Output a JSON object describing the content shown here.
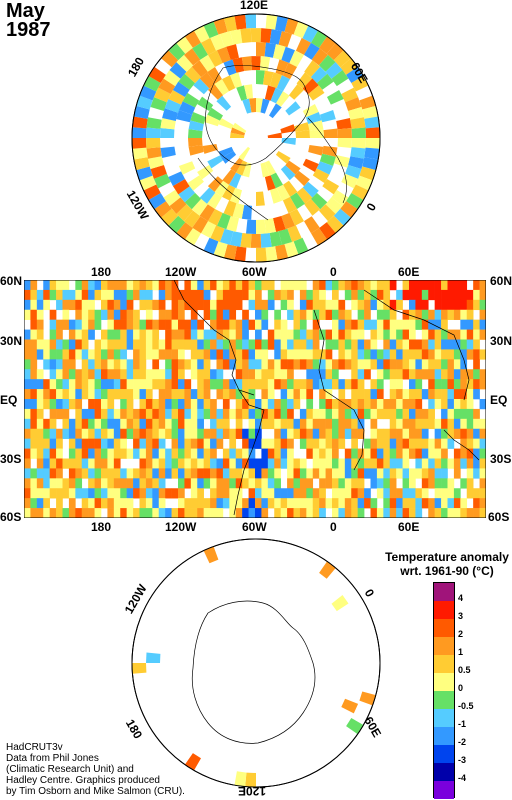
{
  "title": {
    "month": "May",
    "year": "1987"
  },
  "north_polar": {
    "labels": [
      "120E",
      "60E",
      "0",
      "120W",
      "180"
    ]
  },
  "main_map": {
    "x_labels": [
      "180",
      "120W",
      "60W",
      "0",
      "60E"
    ],
    "y_labels": [
      "60N",
      "30N",
      "EQ",
      "30S",
      "60S"
    ]
  },
  "south_polar": {
    "labels": [
      "0",
      "120W",
      "60E",
      "180",
      "120E"
    ]
  },
  "legend": {
    "title_line1": "Temperature anomaly",
    "title_line2": "wrt. 1961-90  (°C)",
    "ticks": [
      "4",
      "3",
      "2",
      "1",
      "0.5",
      "0",
      "-0.5",
      "-1",
      "-2",
      "-3",
      "-4"
    ],
    "colors": [
      "#a0147a",
      "#ff1a00",
      "#ff5a00",
      "#ff9a20",
      "#ffcc33",
      "#ffff80",
      "#66e066",
      "#55ccff",
      "#3399ff",
      "#0044ee",
      "#0000aa",
      "#7a00dd"
    ]
  },
  "credit": [
    "HadCRUT3v",
    "Data from Phil Jones",
    "(Climatic Research Unit) and",
    "Hadley Centre.  Graphics produced",
    "by Tim Osborn and Mike Salmon (CRU)."
  ]
}
